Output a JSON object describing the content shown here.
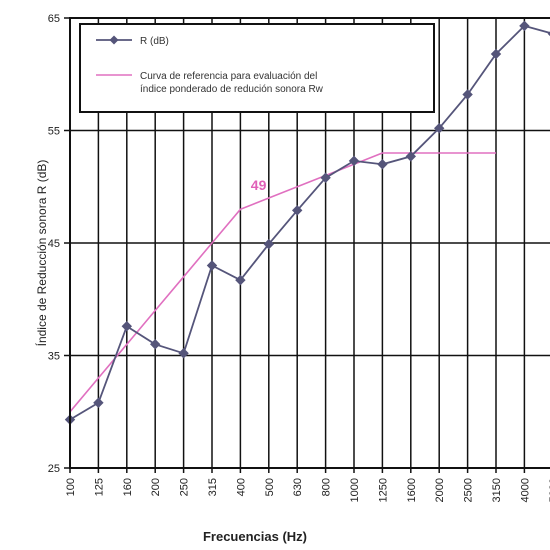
{
  "chart_data": {
    "type": "line",
    "title": "",
    "xlabel": "Frecuencias (Hz)",
    "ylabel": "Índice de Reducción sonora R (dB)",
    "categories": [
      "100",
      "125",
      "160",
      "200",
      "250",
      "315",
      "400",
      "500",
      "630",
      "800",
      "1000",
      "1250",
      "1600",
      "2000",
      "2500",
      "3150",
      "4000",
      "5000"
    ],
    "ylim": [
      25,
      65
    ],
    "yticks": [
      "25",
      "35",
      "45",
      "55",
      "65"
    ],
    "grid": true,
    "legend_position": "top-left",
    "series": [
      {
        "name": "R (dB)",
        "color": "#55557a",
        "marker": "diamond",
        "values": [
          29.3,
          30.8,
          37.6,
          36.0,
          35.2,
          43.0,
          41.7,
          44.9,
          47.9,
          50.8,
          52.3,
          52.0,
          52.7,
          55.2,
          58.2,
          61.8,
          64.3,
          63.6
        ]
      },
      {
        "name": "Curva de referencia para evaluación del índice ponderado de redución sonora Rw",
        "color": "#e070c0",
        "marker": "none",
        "values": [
          30,
          33,
          36,
          39,
          42,
          45,
          48,
          49,
          50,
          51,
          52,
          53,
          53,
          53,
          53,
          53,
          null,
          null
        ]
      }
    ],
    "annotation": {
      "text": "49",
      "category": "500",
      "value": 49,
      "color": "#e060b8"
    }
  }
}
